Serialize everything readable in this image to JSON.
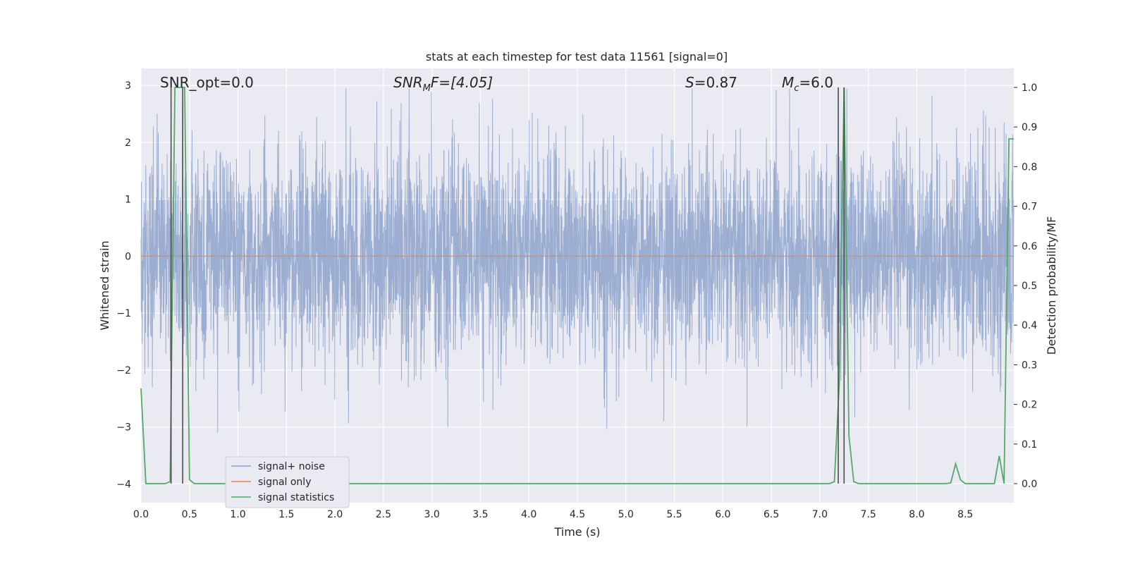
{
  "chart_data": {
    "type": "line",
    "title": "stats at each timestep for test data 11561 [signal=0]",
    "xlabel": "Time (s)",
    "ylabel_left": "Whitened strain",
    "ylabel_right": "Detection probability/MF",
    "xlim": [
      0.0,
      9.0
    ],
    "ylim_left": [
      -4.33,
      3.3
    ],
    "ylim_right": [
      -0.048,
      1.048
    ],
    "x_ticks": [
      "0.0",
      "0.5",
      "1.0",
      "1.5",
      "2.0",
      "2.5",
      "3.0",
      "3.5",
      "4.0",
      "4.5",
      "5.0",
      "5.5",
      "6.0",
      "6.5",
      "7.0",
      "7.5",
      "8.0",
      "8.5"
    ],
    "x_tick_values": [
      0.0,
      0.5,
      1.0,
      1.5,
      2.0,
      2.5,
      3.0,
      3.5,
      4.0,
      4.5,
      5.0,
      5.5,
      6.0,
      6.5,
      7.0,
      7.5,
      8.0,
      8.5
    ],
    "y_left_ticks": [
      "3",
      "2",
      "1",
      "0",
      "−1",
      "−2",
      "−3",
      "−4"
    ],
    "y_left_tick_values": [
      3,
      2,
      1,
      0,
      -1,
      -2,
      -3,
      -4
    ],
    "y_right_ticks": [
      "1.0",
      "0.9",
      "0.8",
      "0.7",
      "0.6",
      "0.5",
      "0.4",
      "0.3",
      "0.2",
      "0.1",
      "0.0"
    ],
    "y_right_tick_values": [
      1.0,
      0.9,
      0.8,
      0.7,
      0.6,
      0.5,
      0.4,
      0.3,
      0.2,
      0.1,
      0.0
    ],
    "annotations": {
      "snr_opt": "SNR_opt=0.0",
      "snr_mf_sym": "SNR",
      "snr_mf_sub": "M",
      "snr_mf_rest": "F=[4.05]",
      "s_sym": "S",
      "s_rest": "=0.87",
      "mc_sym": "M",
      "mc_sub": "c",
      "mc_rest": "=6.0"
    },
    "series": [
      {
        "name": "signal+ noise",
        "color": "#4c72b0",
        "description": "whitened noise, std ~0.9, range ~[-3.3, 2.95]"
      },
      {
        "name": "signal only",
        "color": "#dd8452",
        "values_constant": 0.0
      },
      {
        "name": "signal statistics",
        "color": "#55a868",
        "x": [
          0.0,
          0.05,
          0.1,
          0.15,
          0.2,
          0.25,
          0.3,
          0.35,
          0.4,
          0.45,
          0.5,
          0.55,
          0.6,
          0.65,
          7.0,
          7.05,
          7.1,
          7.15,
          7.2,
          7.25,
          7.3,
          7.35,
          7.4,
          7.45,
          7.5,
          8.25,
          8.3,
          8.35,
          8.4,
          8.45,
          8.5,
          8.55,
          8.6,
          8.65,
          8.7,
          8.75,
          8.8,
          8.85,
          8.9,
          8.95,
          9.0
        ],
        "y": [
          0.24,
          0.0,
          0.0,
          0.0,
          0.0,
          0.0,
          0.005,
          1.0,
          1.0,
          1.0,
          0.01,
          0.0,
          0.0,
          0.0,
          0.0,
          0.0,
          0.0,
          0.005,
          0.25,
          1.0,
          0.12,
          0.005,
          0.0,
          0.0,
          0.0,
          0.0,
          0.0,
          0.002,
          0.05,
          0.01,
          0.0,
          0.0,
          0.0,
          0.0,
          0.0,
          0.0,
          0.0,
          0.07,
          0.0,
          0.87,
          0.87
        ]
      }
    ],
    "vertical_markers_x": [
      0.31,
      0.43,
      7.19,
      7.25
    ],
    "legend": [
      "signal+ noise",
      "signal only",
      "signal statistics"
    ],
    "legend_position": "lower-left",
    "colors": {
      "axes_bg": "#eaeaf2",
      "grid": "#ffffff",
      "noise": "#4c72b0",
      "signal": "#dd8452",
      "stats": "#55a868",
      "marker": "#4d4d4d"
    }
  }
}
